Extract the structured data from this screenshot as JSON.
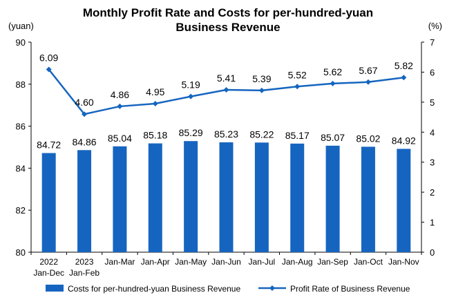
{
  "chart_data": {
    "type": "bar+line",
    "title_line1": "Monthly Profit Rate and Costs for per-hundred-yuan",
    "title_line2": "Business Revenue",
    "left_unit": "(yuan)",
    "right_unit": "(%)",
    "left_ylim": [
      80,
      90
    ],
    "left_ticks": [
      "80",
      "82",
      "84",
      "86",
      "88",
      "90"
    ],
    "right_ylim": [
      0,
      7
    ],
    "right_ticks": [
      "0",
      "1",
      "2",
      "3",
      "4",
      "5",
      "6",
      "7"
    ],
    "categories": [
      [
        "2022",
        "Jan-Dec"
      ],
      [
        "2023",
        "Jan-Feb"
      ],
      [
        "Jan-Mar"
      ],
      [
        "Jan-Apr"
      ],
      [
        "Jan-May"
      ],
      [
        "Jan-Jun"
      ],
      [
        "Jan-Jul"
      ],
      [
        "Jan-Aug"
      ],
      [
        "Jan-Sep"
      ],
      [
        "Jan-Oct"
      ],
      [
        "Jan-Nov"
      ]
    ],
    "series": [
      {
        "name": "Costs for per-hundred-yuan Business Revenue",
        "kind": "bar",
        "axis": "left",
        "color": "#1565C0",
        "values": [
          84.72,
          84.86,
          85.04,
          85.18,
          85.29,
          85.23,
          85.22,
          85.17,
          85.07,
          85.02,
          84.92
        ],
        "labels": [
          "84.72",
          "84.86",
          "85.04",
          "85.18",
          "85.29",
          "85.23",
          "85.22",
          "85.17",
          "85.07",
          "85.02",
          "84.92"
        ]
      },
      {
        "name": "Profit Rate of Business Revenue",
        "kind": "line",
        "axis": "right",
        "color": "#1565C0",
        "values": [
          6.09,
          4.6,
          4.86,
          4.95,
          5.19,
          5.41,
          5.39,
          5.52,
          5.62,
          5.67,
          5.82
        ],
        "labels": [
          "6.09",
          "4.60",
          "4.86",
          "4.95",
          "5.19",
          "5.41",
          "5.39",
          "5.52",
          "5.62",
          "5.67",
          "5.82"
        ]
      }
    ],
    "legend_position": "bottom",
    "grid": false
  }
}
